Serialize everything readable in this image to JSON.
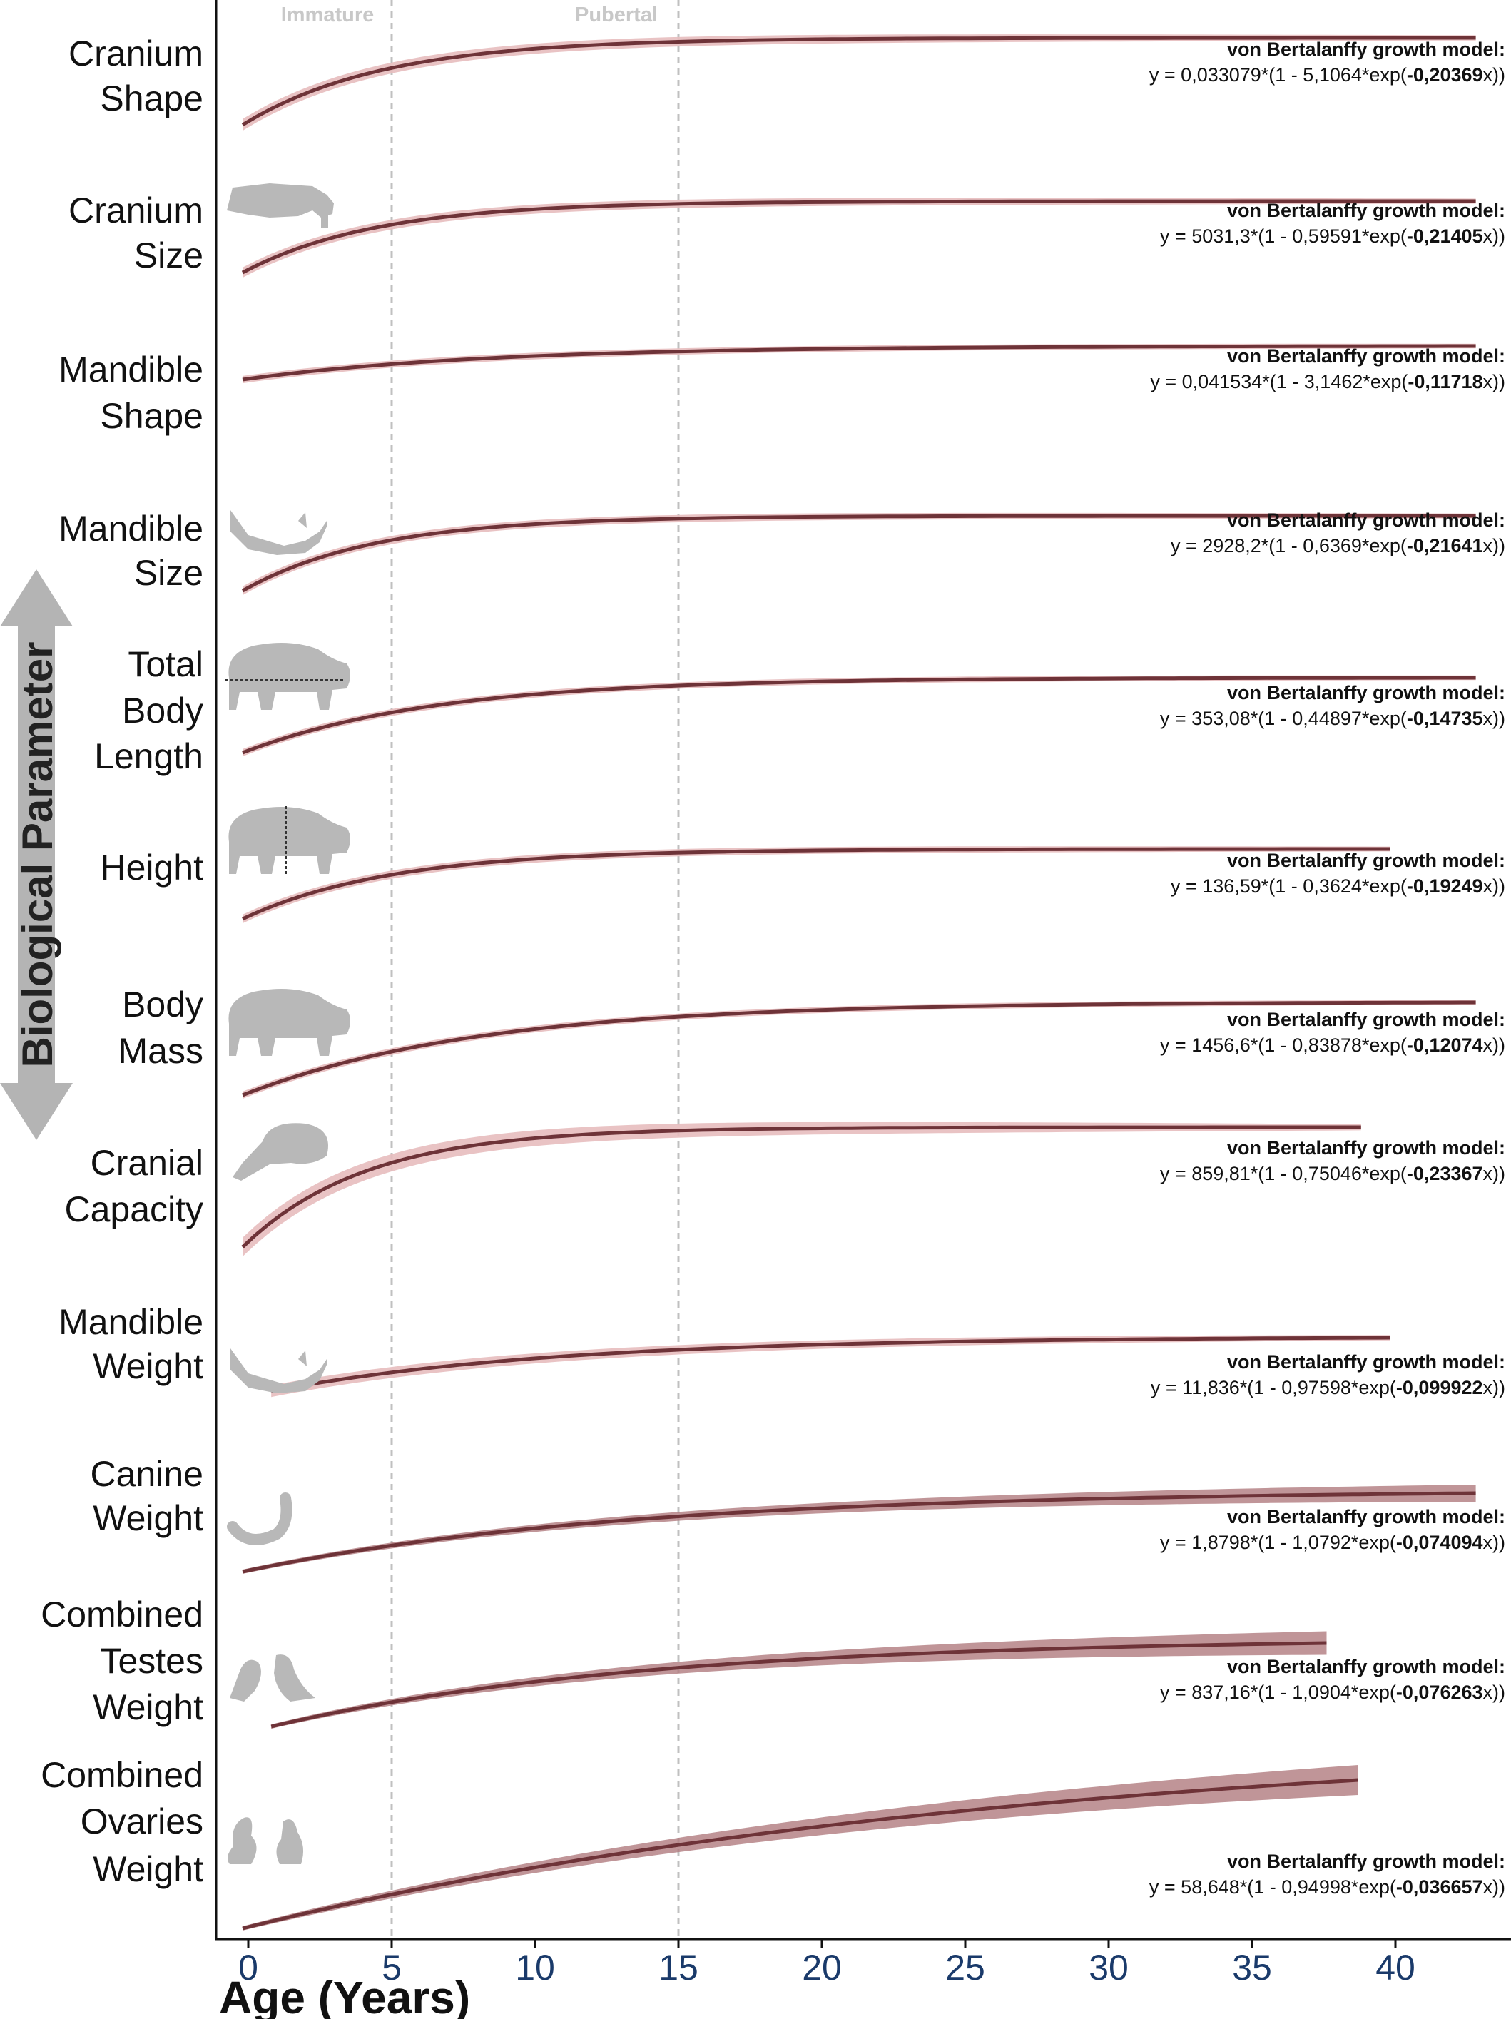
{
  "chart_data": {
    "type": "line",
    "x_axis": {
      "title": "Age (Years)",
      "ticks": [
        0,
        5,
        10,
        15,
        20,
        25,
        30,
        35,
        40
      ],
      "range": [
        -1,
        43.5
      ]
    },
    "y_axis": {
      "title": "Biological Parameter"
    },
    "phase_markers": [
      {
        "label": "Immature",
        "x": 5
      },
      {
        "label": "Pubertal",
        "x": 15
      }
    ],
    "model_title": "von Bertalanffy growth model:",
    "series": [
      {
        "label": "Cranium Shape",
        "label_lines": [
          "Cranium",
          "Shape"
        ],
        "eq_prefix": "y = 0,033079*(1 - 5,1064*exp(",
        "eq_k": "-0,20369",
        "eq_suffix": "x))",
        "a": 0.033079,
        "b": 5.1064,
        "k": 0.20369,
        "x_min": -0.2,
        "x_max": 42.8,
        "band": 0.05,
        "icon": "none"
      },
      {
        "label": "Cranium Size",
        "label_lines": [
          "Cranium",
          "Size"
        ],
        "eq_prefix": "y = 5031,3*(1 - 0,59591*exp(",
        "eq_k": "-0,21405",
        "eq_suffix": "x))",
        "a": 5031.3,
        "b": 0.59591,
        "k": 0.21405,
        "x_min": -0.2,
        "x_max": 42.8,
        "band": 0.04,
        "icon": "cranium-silhouette"
      },
      {
        "label": "Mandible Shape",
        "label_lines": [
          "Mandible",
          "Shape"
        ],
        "eq_prefix": "y = 0,041534*(1 - 3,1462*exp(",
        "eq_k": "-0,11718",
        "eq_suffix": "x))",
        "a": 0.041534,
        "b": 3.1462,
        "k": 0.11718,
        "x_min": -0.2,
        "x_max": 42.8,
        "band": 0.02,
        "icon": "none"
      },
      {
        "label": "Mandible Size",
        "label_lines": [
          "Mandible",
          "Size"
        ],
        "eq_prefix": "y = 2928,2*(1 - 0,6369*exp(",
        "eq_k": "-0,21641",
        "eq_suffix": "x))",
        "a": 2928.2,
        "b": 0.6369,
        "k": 0.21641,
        "x_min": -0.2,
        "x_max": 42.8,
        "band": 0.03,
        "icon": "mandible-silhouette"
      },
      {
        "label": "Total Body Length",
        "label_lines": [
          "Total",
          "Body",
          "Length"
        ],
        "eq_prefix": "y = 353,08*(1 - 0,44897*exp(",
        "eq_k": "-0,14735",
        "eq_suffix": "x))",
        "a": 353.08,
        "b": 0.44897,
        "k": 0.14735,
        "x_min": -0.2,
        "x_max": 42.8,
        "band": 0.02,
        "icon": "hippo-length-silhouette"
      },
      {
        "label": "Height",
        "label_lines": [
          "Height"
        ],
        "eq_prefix": "y = 136,59*(1 - 0,3624*exp(",
        "eq_k": "-0,19249",
        "eq_suffix": "x))",
        "a": 136.59,
        "b": 0.3624,
        "k": 0.19249,
        "x_min": -0.2,
        "x_max": 39.8,
        "band": 0.03,
        "icon": "hippo-height-silhouette"
      },
      {
        "label": "Body Mass",
        "label_lines": [
          "Body",
          "Mass"
        ],
        "eq_prefix": "y = 1456,6*(1 - 0,83878*exp(",
        "eq_k": "-0,12074",
        "eq_suffix": "x))",
        "a": 1456.6,
        "b": 0.83878,
        "k": 0.12074,
        "x_min": -0.2,
        "x_max": 42.8,
        "band": 0.02,
        "icon": "hippo-silhouette"
      },
      {
        "label": "Cranial Capacity",
        "label_lines": [
          "Cranial",
          "Capacity"
        ],
        "eq_prefix": "y = 859,81*(1 - 0,75046*exp(",
        "eq_k": "-0,23367",
        "eq_suffix": "x))",
        "a": 859.81,
        "b": 0.75046,
        "k": 0.23367,
        "x_min": -0.2,
        "x_max": 38.8,
        "band": 0.1,
        "icon": "brain-silhouette"
      },
      {
        "label": "Mandible Weight",
        "label_lines": [
          "Mandible",
          "Weight"
        ],
        "eq_prefix": "y = 11,836*(1 - 0,97598*exp(",
        "eq_k": "-0,099922",
        "eq_suffix": "x))",
        "a": 11.836,
        "b": 0.97598,
        "k": 0.099922,
        "x_min": 0.8,
        "x_max": 39.8,
        "band": 0.05,
        "icon": "mandible-silhouette"
      },
      {
        "label": "Canine Weight",
        "label_lines": [
          "Canine",
          "Weight"
        ],
        "eq_prefix": "y = 1,8798*(1 - 1,0792*exp(",
        "eq_k": "-0,074094",
        "eq_suffix": "x))",
        "a": 1.8798,
        "b": 1.0792,
        "k": 0.074094,
        "x_min": -0.2,
        "x_max": 42.8,
        "band": 0.1,
        "icon": "canine-silhouette"
      },
      {
        "label": "Combined Testes Weight",
        "label_lines": [
          "Combined",
          "Testes",
          "Weight"
        ],
        "eq_prefix": "y = 837,16*(1 - 1,0904*exp(",
        "eq_k": "-0,076263",
        "eq_suffix": "x))",
        "a": 837.16,
        "b": 1.0904,
        "k": 0.076263,
        "x_min": 0.8,
        "x_max": 37.6,
        "band": 0.15,
        "icon": "testes-silhouette"
      },
      {
        "label": "Combined Ovaries Weight",
        "label_lines": [
          "Combined",
          "Ovaries",
          "Weight"
        ],
        "eq_prefix": "y = 58,648*(1 - 0,94998*exp(",
        "eq_k": "-0,036657",
        "eq_suffix": "x))",
        "a": 58.648,
        "b": 0.94998,
        "k": 0.036657,
        "x_min": -0.2,
        "x_max": 38.7,
        "band": 0.2,
        "icon": "ovaries-silhouette"
      }
    ],
    "colors": {
      "curve": "#6e3338",
      "band": "#e7bcbe",
      "band_dark": "#b07a7e",
      "axis": "#111111",
      "phase_line": "#c0c0c0",
      "arrow": "#b4b4b4"
    }
  }
}
